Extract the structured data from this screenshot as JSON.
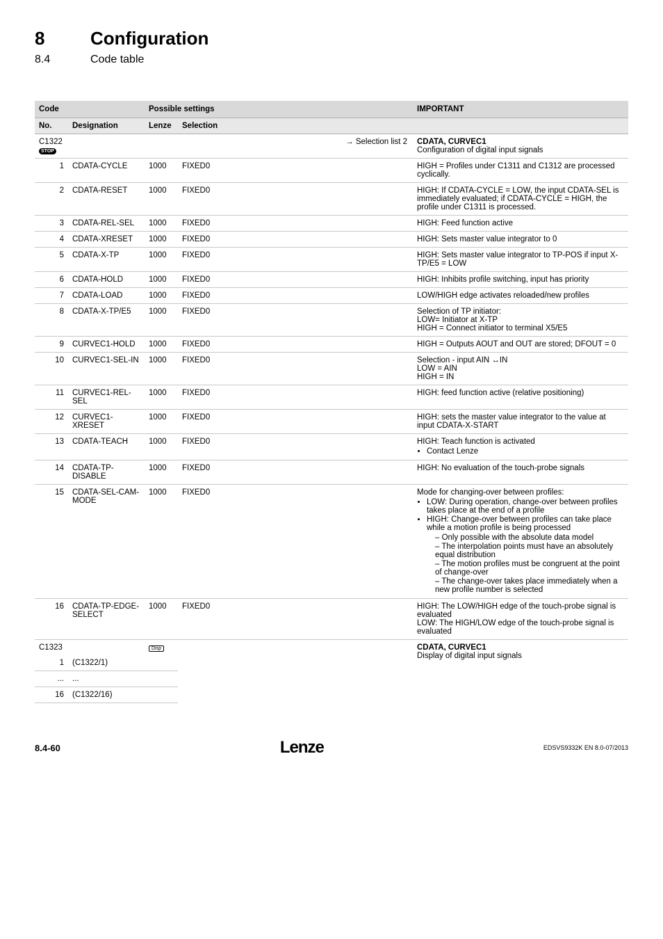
{
  "header": {
    "chapter_num": "8",
    "chapter_title": "Configuration",
    "section_num": "8.4",
    "section_title": "Code table"
  },
  "table": {
    "hdr": {
      "code": "Code",
      "possible": "Possible settings",
      "important": "IMPORTANT",
      "no": "No.",
      "designation": "Designation",
      "lenze": "Lenze",
      "selection": "Selection"
    },
    "group_c1322": {
      "code": "C1322",
      "badge": "STOP",
      "sel_link": "→ Selection list 2",
      "imp_title": "CDATA, CURVEC1",
      "imp_sub": "Configuration of digital input signals"
    },
    "rows": [
      {
        "no": "1",
        "desig": "CDATA-CYCLE",
        "lenze": "1000",
        "sel": "FIXED0",
        "imp": "HIGH = Profiles under C1311 and C1312 are processed cyclically."
      },
      {
        "no": "2",
        "desig": "CDATA-RESET",
        "lenze": "1000",
        "sel": "FIXED0",
        "imp": "HIGH: If CDATA-CYCLE = LOW, the input CDATA-SEL is immediately evaluated; if CDATA-CYCLE = HIGH, the profile under C1311 is processed."
      },
      {
        "no": "3",
        "desig": "CDATA-REL-SEL",
        "lenze": "1000",
        "sel": "FIXED0",
        "imp": "HIGH: Feed function active"
      },
      {
        "no": "4",
        "desig": "CDATA-XRESET",
        "lenze": "1000",
        "sel": "FIXED0",
        "imp": "HIGH: Sets master value integrator to 0"
      },
      {
        "no": "5",
        "desig": "CDATA-X-TP",
        "lenze": "1000",
        "sel": "FIXED0",
        "imp": "HIGH: Sets master value integrator to TP-POS if input X-TP/E5 = LOW"
      },
      {
        "no": "6",
        "desig": "CDATA-HOLD",
        "lenze": "1000",
        "sel": "FIXED0",
        "imp": "HIGH: Inhibits profile switching, input has priority"
      },
      {
        "no": "7",
        "desig": "CDATA-LOAD",
        "lenze": "1000",
        "sel": "FIXED0",
        "imp": "LOW/HIGH edge activates reloaded/new profiles"
      },
      {
        "no": "8",
        "desig": "CDATA-X-TP/E5",
        "lenze": "1000",
        "sel": "FIXED0",
        "imp": "Selection of TP initiator:\nLOW= Initiator at X-TP\nHIGH = Connect initiator to terminal X5/E5"
      },
      {
        "no": "9",
        "desig": "CURVEC1-HOLD",
        "lenze": "1000",
        "sel": "FIXED0",
        "imp": "HIGH = Outputs AOUT and OUT are stored; DFOUT = 0"
      },
      {
        "no": "10",
        "desig": "CURVEC1-SEL-IN",
        "lenze": "1000",
        "sel": "FIXED0",
        "imp": "Selection - input AIN ↔IN\nLOW = AIN\nHIGH = IN"
      },
      {
        "no": "11",
        "desig": "CURVEC1-REL-SEL",
        "lenze": "1000",
        "sel": "FIXED0",
        "imp": "HIGH: feed function active (relative positioning)"
      },
      {
        "no": "12",
        "desig": "CURVEC1-XRESET",
        "lenze": "1000",
        "sel": "FIXED0",
        "imp": "HIGH: sets the master value integrator to the value at input CDATA-X-START"
      },
      {
        "no": "13",
        "desig": "CDATA-TEACH",
        "lenze": "1000",
        "sel": "FIXED0",
        "imp_line": "HIGH: Teach function is activated",
        "imp_bullet": "Contact Lenze"
      },
      {
        "no": "14",
        "desig": "CDATA-TP-DISABLE",
        "lenze": "1000",
        "sel": "FIXED0",
        "imp": "HIGH: No evaluation of the touch-probe signals"
      },
      {
        "no": "15",
        "desig": "CDATA-SEL-CAM-MODE",
        "lenze": "1000",
        "sel": "FIXED0",
        "imp_line": "Mode for changing-over between profiles:",
        "bullets": [
          "LOW: During operation, change-over between profiles takes place at the end of a profile",
          "HIGH: Change-over between profiles can take place while a motion profile is being processed"
        ],
        "dashes": [
          "Only possible with the absolute data model",
          "The interpolation points must have an absolutely equal distribution",
          "The motion profiles must be congruent at the point of change-over",
          "The change-over takes place immediately when a new profile number is selected"
        ]
      },
      {
        "no": "16",
        "desig": "CDATA-TP-EDGE-SELECT",
        "lenze": "1000",
        "sel": "FIXED0",
        "imp": "HIGH: The LOW/HIGH edge of the touch-probe signal is evaluated\nLOW: The HIGH/LOW edge of the touch-probe signal is evaluated"
      }
    ],
    "group_c1323": {
      "code": "C1323",
      "badge": "Disp",
      "imp_title": "CDATA, CURVEC1",
      "imp_sub": "Display of digital input signals",
      "r1_no": "1",
      "r1_desig": "(C1322/1)",
      "r2_no": "...",
      "r2_desig": "...",
      "r3_no": "16",
      "r3_desig": "(C1322/16)"
    }
  },
  "footer": {
    "left": "8.4-60",
    "center": "Lenze",
    "right": "EDSVS9332K EN 8.0-07/2013"
  }
}
